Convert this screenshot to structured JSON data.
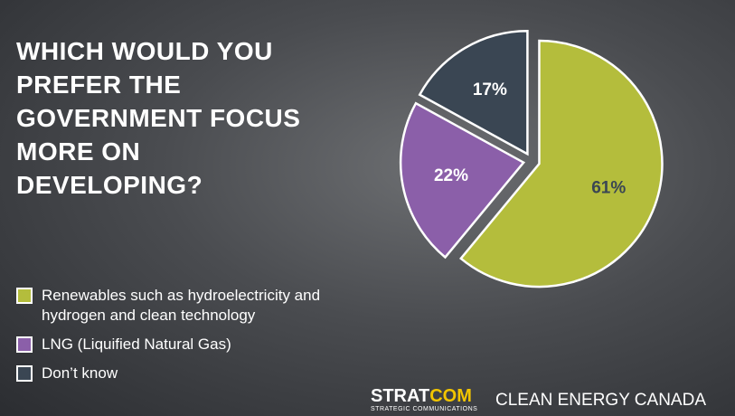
{
  "chart_data": {
    "type": "pie",
    "title": "WHICH WOULD YOU PREFER THE GOVERNMENT FOCUS MORE ON DEVELOPING?",
    "categories": [
      "Renewables such as hydroelectricity and hydrogen and clean technology",
      "LNG (Liquified Natural Gas)",
      "Don’t know"
    ],
    "values": [
      61,
      22,
      17
    ],
    "value_labels": [
      "61%",
      "22%",
      "17%"
    ],
    "colors": [
      "#b4bd3c",
      "#8b5fa9",
      "#3a4653"
    ]
  },
  "footer": {
    "brand_part1": "STRAT",
    "brand_part2": "COM",
    "brand_tagline": "STRATEGIC COMMUNICATIONS",
    "partner": "CLEAN ENERGY CANADA"
  }
}
